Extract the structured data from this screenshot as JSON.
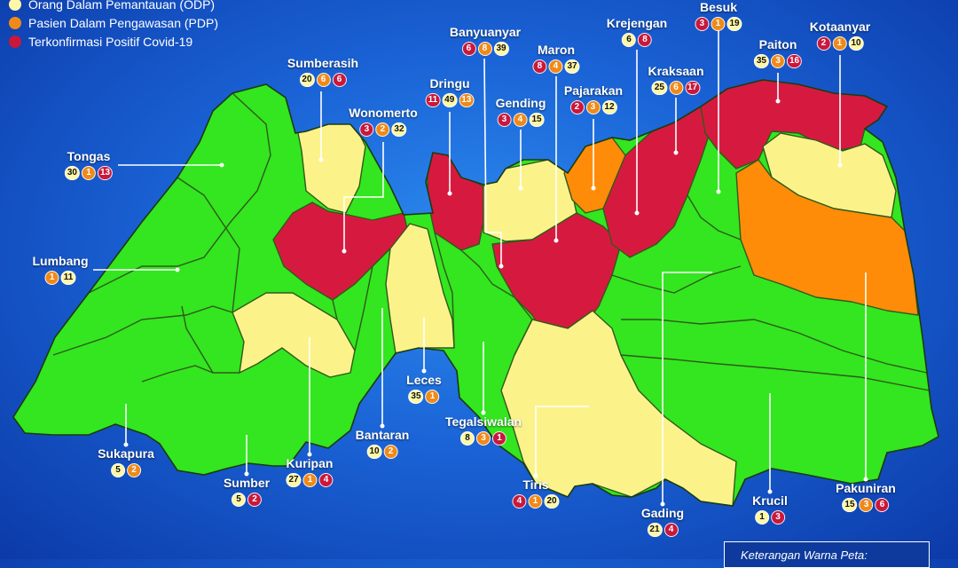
{
  "legend": {
    "items": [
      {
        "label": "Orang Dalam Pemantauan (ODP)",
        "color": "#fff7a8"
      },
      {
        "label": "Pasien Dalam Pengawasan (PDP)",
        "color": "#ef8a1a"
      },
      {
        "label": "Terkonfirmasi Positif Covid-19",
        "color": "#c8183c"
      }
    ]
  },
  "colors": {
    "green": "#33e61f",
    "yellow": "#fbf38a",
    "orange": "#ff8c08",
    "red": "#d61a3f",
    "background": "#1a63d6"
  },
  "districts": [
    {
      "name": "Tongas",
      "values": [
        30,
        1,
        13
      ],
      "badges": [
        "odp",
        "pdp",
        "pos"
      ]
    },
    {
      "name": "Lumbang",
      "values": [
        1,
        11
      ],
      "badges": [
        "pdp",
        "odp"
      ]
    },
    {
      "name": "Sumberasih",
      "values": [
        20,
        6,
        6
      ],
      "badges": [
        "odp",
        "pdp",
        "pos"
      ]
    },
    {
      "name": "Wonomerto",
      "values": [
        3,
        2,
        32
      ],
      "badges": [
        "pos",
        "pdp",
        "odp"
      ]
    },
    {
      "name": "Dringu",
      "values": [
        11,
        49,
        13
      ],
      "badges": [
        "pos",
        "odp",
        "pdp"
      ]
    },
    {
      "name": "Banyuanyar",
      "values": [
        6,
        8,
        39
      ],
      "badges": [
        "pos",
        "pdp",
        "odp"
      ]
    },
    {
      "name": "Gending",
      "values": [
        3,
        4,
        15
      ],
      "badges": [
        "pos",
        "pdp",
        "odp"
      ]
    },
    {
      "name": "Maron",
      "values": [
        8,
        4,
        37
      ],
      "badges": [
        "pos",
        "pdp",
        "odp"
      ]
    },
    {
      "name": "Pajarakan",
      "values": [
        2,
        3,
        12
      ],
      "badges": [
        "pos",
        "pdp",
        "odp"
      ]
    },
    {
      "name": "Krejengan",
      "values": [
        6,
        8
      ],
      "badges": [
        "odp",
        "pos"
      ]
    },
    {
      "name": "Kraksaan",
      "values": [
        25,
        6,
        17
      ],
      "badges": [
        "odp",
        "pdp",
        "pos"
      ]
    },
    {
      "name": "Besuk",
      "values": [
        3,
        1,
        19
      ],
      "badges": [
        "pos",
        "pdp",
        "odp"
      ]
    },
    {
      "name": "Paiton",
      "values": [
        35,
        3,
        16
      ],
      "badges": [
        "odp",
        "pdp",
        "pos"
      ]
    },
    {
      "name": "Kotaanyar",
      "values": [
        2,
        1,
        10
      ],
      "badges": [
        "pos",
        "pdp",
        "odp"
      ]
    },
    {
      "name": "Leces",
      "values": [
        35,
        1
      ],
      "badges": [
        "odp",
        "pdp"
      ]
    },
    {
      "name": "Tegalsiwalan",
      "values": [
        8,
        3,
        1
      ],
      "badges": [
        "odp",
        "pdp",
        "pos"
      ]
    },
    {
      "name": "Bantaran",
      "values": [
        10,
        2
      ],
      "badges": [
        "odp",
        "pdp"
      ]
    },
    {
      "name": "Kuripan",
      "values": [
        27,
        1,
        4
      ],
      "badges": [
        "odp",
        "pdp",
        "pos"
      ]
    },
    {
      "name": "Sumber",
      "values": [
        5,
        2
      ],
      "badges": [
        "odp",
        "pos"
      ]
    },
    {
      "name": "Sukapura",
      "values": [
        5,
        2
      ],
      "badges": [
        "odp",
        "pdp"
      ]
    },
    {
      "name": "Tiris",
      "values": [
        4,
        1,
        20
      ],
      "badges": [
        "pos",
        "pdp",
        "odp"
      ]
    },
    {
      "name": "Gading",
      "values": [
        21,
        4
      ],
      "badges": [
        "odp",
        "pos"
      ]
    },
    {
      "name": "Krucil",
      "values": [
        1,
        3
      ],
      "badges": [
        "odp",
        "pos"
      ]
    },
    {
      "name": "Pakuniran",
      "values": [
        15,
        3,
        6
      ],
      "badges": [
        "odp",
        "pdp",
        "pos"
      ]
    }
  ],
  "map_key": {
    "label": "Keterangan Warna Peta:"
  }
}
